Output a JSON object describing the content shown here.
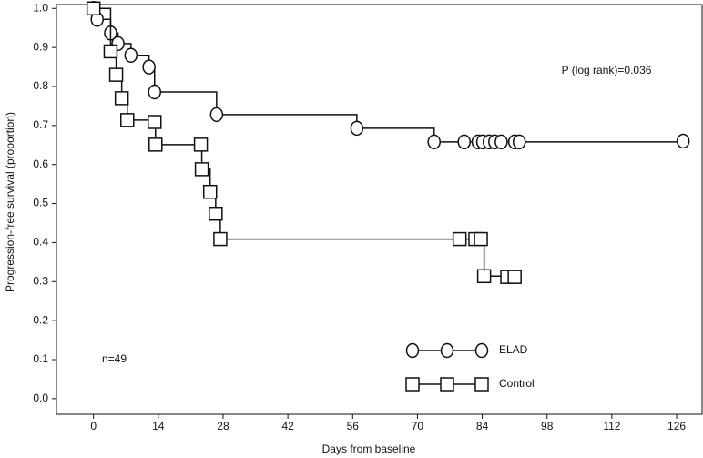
{
  "chart_data": {
    "type": "step",
    "annotations": [
      "P (log rank)=0.036",
      "n=49"
    ],
    "xlabel": "Days from baseline",
    "ylabel": "Progression-free survival (proportion)",
    "xlim": [
      -8,
      131.5
    ],
    "ylim": [
      -0.04,
      1.01
    ],
    "xticks": [
      0,
      14,
      28,
      42,
      56,
      70,
      84,
      98,
      112,
      126
    ],
    "yticks": [
      {
        "value": 0,
        "label": "0.0"
      },
      {
        "value": 0.1,
        "label": "0.1"
      },
      {
        "value": 0.2,
        "label": "0.2"
      },
      {
        "value": 0.3,
        "label": "0.3"
      },
      {
        "value": 0.4,
        "label": "0.4"
      },
      {
        "value": 0.5,
        "label": "0.5"
      },
      {
        "value": 0.6,
        "label": "0.6"
      },
      {
        "value": 0.7,
        "label": "0.7"
      },
      {
        "value": 0.8,
        "label": "0.8"
      },
      {
        "value": 0.9,
        "label": "0.9"
      },
      {
        "value": 1.0,
        "label": "1.0"
      }
    ],
    "series": [
      {
        "name": "ELAD",
        "color": "#111111",
        "marker": "circle",
        "x": [
          0,
          0.8,
          3.7,
          5.3,
          8.1,
          12,
          13.2,
          26.6,
          56.9,
          73.6,
          80.1,
          83.1,
          84.1,
          85.5,
          86.7,
          88.1,
          91,
          92,
          127.4
        ],
        "values": [
          1.0,
          0.972,
          0.937,
          0.91,
          0.88,
          0.85,
          0.786,
          0.728,
          0.693,
          0.658,
          0.658,
          0.658,
          0.658,
          0.658,
          0.658,
          0.658,
          0.658,
          0.658,
          0.66
        ]
      },
      {
        "name": "Control",
        "color": "#111111",
        "marker": "square",
        "x": [
          0,
          3.7,
          4.9,
          6.1,
          7.3,
          13.2,
          13.4,
          23.2,
          23.4,
          25.2,
          26.4,
          27.4,
          79.1,
          82.5,
          83.7,
          84.4,
          89.4,
          91
        ],
        "values": [
          1.0,
          0.89,
          0.83,
          0.77,
          0.714,
          0.709,
          0.651,
          0.651,
          0.588,
          0.53,
          0.474,
          0.409,
          0.409,
          0.409,
          0.409,
          0.314,
          0.312,
          0.312
        ]
      }
    ]
  }
}
